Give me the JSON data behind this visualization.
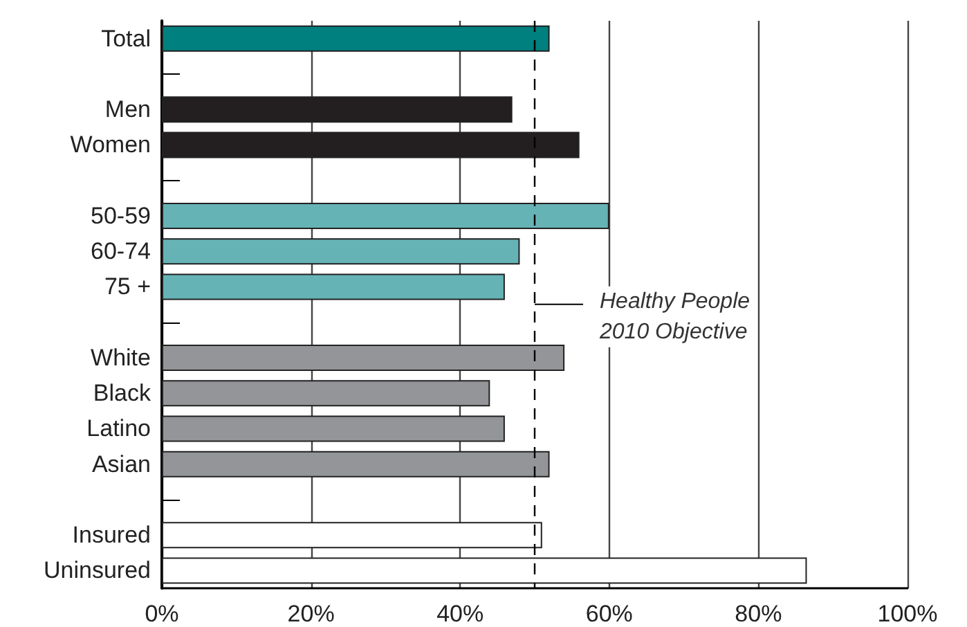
{
  "chart_data": {
    "type": "bar",
    "orientation": "horizontal",
    "categories": [
      "Total",
      null,
      "Men",
      "Women",
      null,
      "50-59",
      "60-74",
      "75 +",
      null,
      "White",
      "Black",
      "Latino",
      "Asian",
      null,
      "Insured",
      "Uninsured"
    ],
    "values": [
      52,
      null,
      47,
      56,
      null,
      60,
      48,
      46,
      null,
      54,
      44,
      46,
      52,
      null,
      51,
      86.5
    ],
    "colors": [
      "#00807f",
      null,
      "#231f20",
      "#231f20",
      null,
      "#66b3b6",
      "#66b3b6",
      "#66b3b6",
      null,
      "#939598",
      "#939598",
      "#939598",
      "#939598",
      null,
      "#ffffff",
      "#ffffff"
    ],
    "xlim": [
      0,
      100
    ],
    "xticks": [
      {
        "value": 0,
        "label": "0%"
      },
      {
        "value": 20,
        "label": "20%"
      },
      {
        "value": 40,
        "label": "40%"
      },
      {
        "value": 60,
        "label": "60%"
      },
      {
        "value": 80,
        "label": "80%"
      },
      {
        "value": 100,
        "label": "100%"
      }
    ],
    "grid": "x",
    "ref_lines": [
      {
        "axis": "x",
        "value": 50,
        "label": "Healthy People\n2010 Objective",
        "line_style": "dashed",
        "color": "#000000"
      }
    ]
  }
}
